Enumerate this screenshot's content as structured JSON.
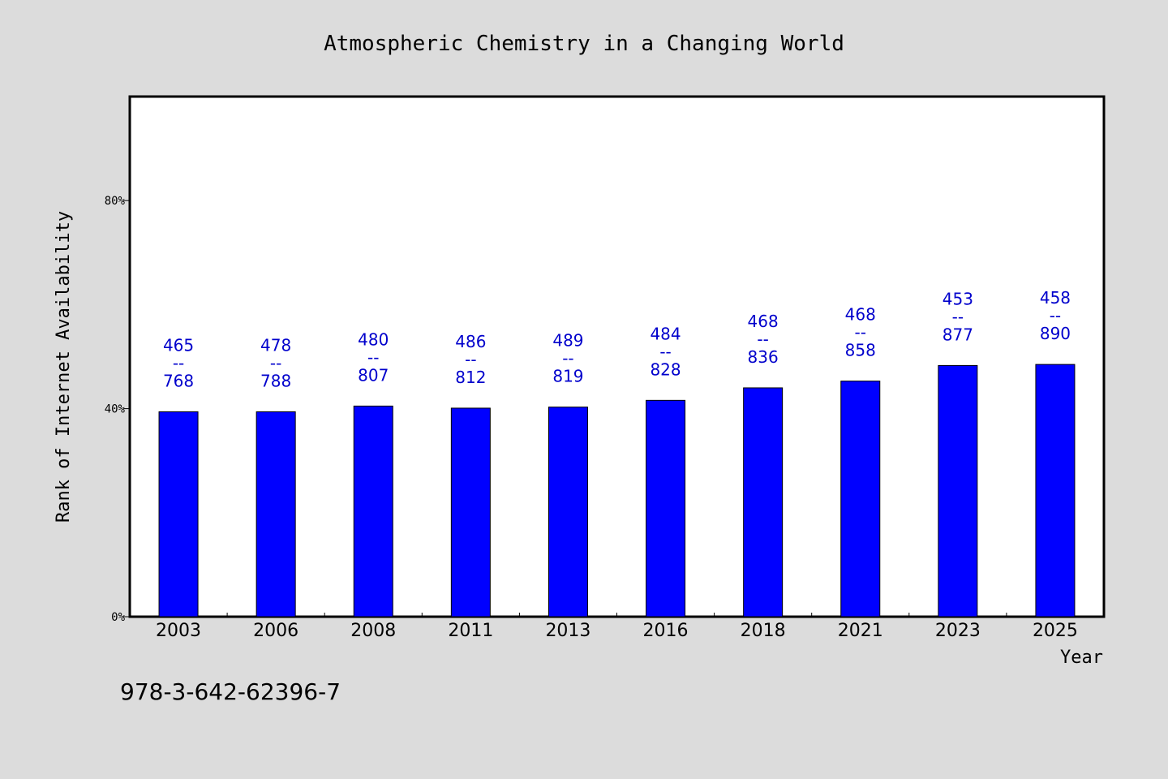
{
  "chart_data": {
    "type": "bar",
    "title": "Atmospheric Chemistry in a Changing World",
    "xlabel": "Year",
    "ylabel": "Rank of Internet Availability",
    "footer": "978-3-642-62396-7",
    "categories": [
      "2003",
      "2006",
      "2008",
      "2011",
      "2013",
      "2016",
      "2018",
      "2021",
      "2023",
      "2025"
    ],
    "values": [
      39.4,
      39.4,
      40.5,
      40.1,
      40.3,
      41.6,
      44.0,
      45.3,
      48.3,
      48.5
    ],
    "bar_labels": [
      {
        "top": "465",
        "sep": "--",
        "bottom": "768"
      },
      {
        "top": "478",
        "sep": "--",
        "bottom": "788"
      },
      {
        "top": "480",
        "sep": "--",
        "bottom": "807"
      },
      {
        "top": "486",
        "sep": "--",
        "bottom": "812"
      },
      {
        "top": "489",
        "sep": "--",
        "bottom": "819"
      },
      {
        "top": "484",
        "sep": "--",
        "bottom": "828"
      },
      {
        "top": "468",
        "sep": "--",
        "bottom": "836"
      },
      {
        "top": "468",
        "sep": "--",
        "bottom": "858"
      },
      {
        "top": "453",
        "sep": "--",
        "bottom": "877"
      },
      {
        "top": "458",
        "sep": "--",
        "bottom": "890"
      }
    ],
    "y_ticks": [
      {
        "value": 0,
        "label": "0%"
      },
      {
        "value": 40,
        "label": "40%"
      },
      {
        "value": 80,
        "label": "80%"
      }
    ],
    "ylim": [
      0,
      100
    ],
    "grid": false,
    "legend": "none",
    "colors": {
      "bar": "#0000ff",
      "label": "#0000cc",
      "background": "#dcdcdc",
      "plot": "#ffffff"
    }
  }
}
